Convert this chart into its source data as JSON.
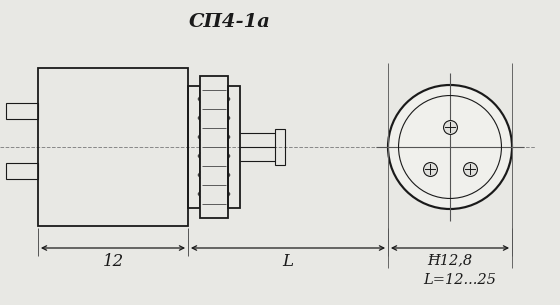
{
  "title": "СП4-1а",
  "bg_color": "#e8e8e4",
  "line_color": "#1a1a1a",
  "text_color": "#1a1a1a",
  "label_12": "12",
  "label_L": "L",
  "label_phi": "Ħ12,8",
  "label_formula": "L=12...25"
}
